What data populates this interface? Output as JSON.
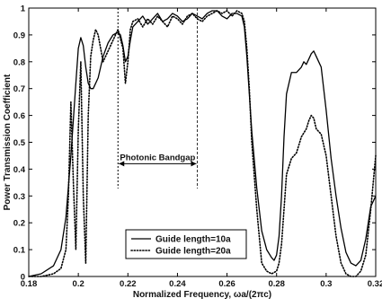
{
  "chart_data": {
    "type": "line",
    "xlabel": "Normalized Frequency, ωa/(2πc)",
    "ylabel": "Power Transmission Coefficient",
    "xlim": [
      0.18,
      0.32
    ],
    "ylim": [
      0,
      1
    ],
    "x_ticks": [
      "0.18",
      "0.2",
      "0.22",
      "0.24",
      "0.26",
      "0.28",
      "0.3",
      "0.32"
    ],
    "y_ticks": [
      "0",
      "0.1",
      "0.2",
      "0.3",
      "0.4",
      "0.5",
      "0.6",
      "0.7",
      "0.8",
      "0.9",
      "1"
    ],
    "grid": false,
    "legend_position": "bottom-center",
    "annotation": {
      "text": "Photonic Bandgap",
      "x_start": 0.216,
      "x_end": 0.248,
      "y_arrow": 0.42
    },
    "series": [
      {
        "name": "Guide length=10a",
        "style": "solid",
        "color": "#000000",
        "x": [
          0.18,
          0.185,
          0.19,
          0.193,
          0.195,
          0.197,
          0.199,
          0.2,
          0.201,
          0.202,
          0.203,
          0.204,
          0.205,
          0.206,
          0.208,
          0.21,
          0.212,
          0.214,
          0.216,
          0.217,
          0.218,
          0.219,
          0.22,
          0.221,
          0.222,
          0.224,
          0.226,
          0.228,
          0.23,
          0.232,
          0.234,
          0.236,
          0.238,
          0.24,
          0.242,
          0.244,
          0.246,
          0.248,
          0.25,
          0.252,
          0.254,
          0.256,
          0.258,
          0.26,
          0.262,
          0.264,
          0.266,
          0.267,
          0.268,
          0.269,
          0.27,
          0.272,
          0.274,
          0.276,
          0.278,
          0.279,
          0.28,
          0.281,
          0.282,
          0.283,
          0.284,
          0.286,
          0.288,
          0.29,
          0.291,
          0.292,
          0.293,
          0.294,
          0.295,
          0.296,
          0.297,
          0.298,
          0.3,
          0.302,
          0.304,
          0.306,
          0.308,
          0.31,
          0.312,
          0.314,
          0.316,
          0.318,
          0.32
        ],
        "y": [
          0.0,
          0.01,
          0.04,
          0.1,
          0.22,
          0.45,
          0.72,
          0.85,
          0.89,
          0.86,
          0.78,
          0.72,
          0.7,
          0.7,
          0.74,
          0.82,
          0.87,
          0.9,
          0.91,
          0.9,
          0.86,
          0.8,
          0.82,
          0.88,
          0.93,
          0.95,
          0.97,
          0.94,
          0.96,
          0.98,
          0.95,
          0.96,
          0.98,
          0.97,
          0.95,
          0.96,
          0.98,
          0.97,
          0.96,
          0.98,
          0.99,
          0.99,
          0.97,
          0.96,
          0.98,
          0.98,
          0.97,
          0.93,
          0.82,
          0.68,
          0.54,
          0.33,
          0.17,
          0.1,
          0.07,
          0.06,
          0.08,
          0.15,
          0.3,
          0.52,
          0.68,
          0.76,
          0.76,
          0.78,
          0.8,
          0.79,
          0.81,
          0.83,
          0.84,
          0.82,
          0.8,
          0.78,
          0.62,
          0.44,
          0.3,
          0.18,
          0.09,
          0.05,
          0.04,
          0.06,
          0.14,
          0.26,
          0.3
        ]
      },
      {
        "name": "Guide length=20a",
        "style": "dotted",
        "color": "#000000",
        "x": [
          0.18,
          0.185,
          0.19,
          0.193,
          0.195,
          0.196,
          0.197,
          0.198,
          0.199,
          0.2,
          0.201,
          0.202,
          0.203,
          0.204,
          0.205,
          0.206,
          0.207,
          0.208,
          0.21,
          0.212,
          0.214,
          0.216,
          0.218,
          0.219,
          0.22,
          0.221,
          0.222,
          0.224,
          0.226,
          0.228,
          0.23,
          0.232,
          0.234,
          0.236,
          0.238,
          0.24,
          0.242,
          0.244,
          0.246,
          0.248,
          0.25,
          0.252,
          0.254,
          0.256,
          0.258,
          0.26,
          0.262,
          0.264,
          0.266,
          0.267,
          0.268,
          0.269,
          0.27,
          0.272,
          0.274,
          0.276,
          0.278,
          0.28,
          0.281,
          0.282,
          0.283,
          0.284,
          0.286,
          0.288,
          0.29,
          0.292,
          0.293,
          0.294,
          0.295,
          0.296,
          0.298,
          0.3,
          0.302,
          0.304,
          0.306,
          0.308,
          0.31,
          0.312,
          0.314,
          0.316,
          0.318,
          0.32
        ],
        "y": [
          0.0,
          0.0,
          0.01,
          0.03,
          0.1,
          0.3,
          0.65,
          0.35,
          0.1,
          0.55,
          0.8,
          0.3,
          0.05,
          0.6,
          0.82,
          0.88,
          0.92,
          0.9,
          0.8,
          0.84,
          0.88,
          0.92,
          0.85,
          0.72,
          0.8,
          0.92,
          0.95,
          0.96,
          0.93,
          0.96,
          0.94,
          0.97,
          0.95,
          0.93,
          0.97,
          0.96,
          0.94,
          0.97,
          0.98,
          0.96,
          0.95,
          0.97,
          0.98,
          0.99,
          0.98,
          0.99,
          0.97,
          0.99,
          0.98,
          0.95,
          0.85,
          0.7,
          0.5,
          0.25,
          0.05,
          0.02,
          0.01,
          0.02,
          0.05,
          0.12,
          0.25,
          0.38,
          0.44,
          0.46,
          0.52,
          0.55,
          0.58,
          0.6,
          0.59,
          0.55,
          0.53,
          0.45,
          0.3,
          0.15,
          0.05,
          0.01,
          0.0,
          0.0,
          0.02,
          0.08,
          0.25,
          0.45
        ]
      }
    ]
  }
}
